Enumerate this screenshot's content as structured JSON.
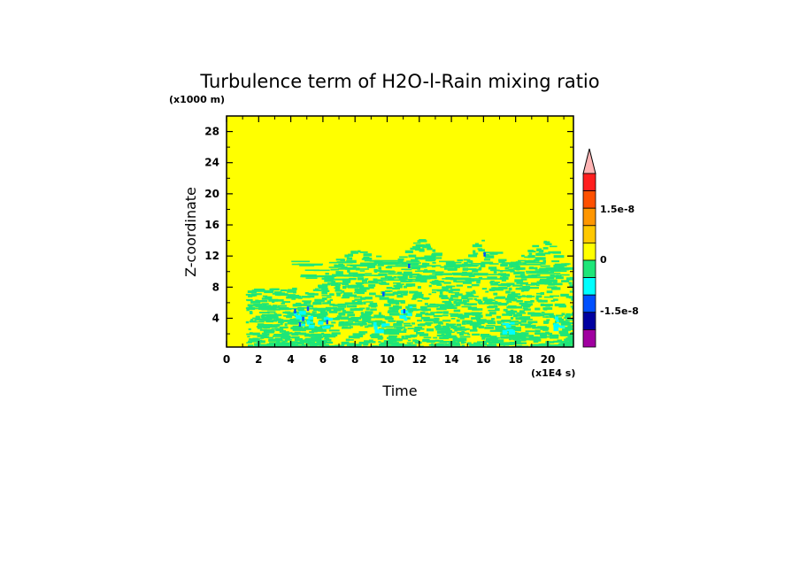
{
  "chart_data": {
    "type": "heatmap",
    "title": "Turbulence term of H2O-l-Rain mixing ratio",
    "xlabel": "Time",
    "ylabel": "Z-coordinate",
    "x_unit_label": "(x1E4 s)",
    "y_unit_label": "(x1000 m)",
    "xlim": [
      0,
      21.6
    ],
    "ylim": [
      0.3,
      30.0
    ],
    "x_ticks": [
      0,
      2,
      4,
      6,
      8,
      10,
      12,
      14,
      16,
      18,
      20
    ],
    "y_ticks": [
      4,
      8,
      12,
      16,
      20,
      24,
      28
    ],
    "x_tick_labels": [
      "0",
      "2",
      "4",
      "6",
      "8",
      "10",
      "12",
      "14",
      "16",
      "18",
      "20"
    ],
    "y_tick_labels": [
      "4",
      "8",
      "12",
      "16",
      "20",
      "24",
      "28"
    ],
    "background_level_color": "#ffff00",
    "colorbar": {
      "colors_top_to_bottom": [
        "#ffb4b4",
        "#ff1e1e",
        "#ff5000",
        "#ff9600",
        "#ffc800",
        "#ffff00",
        "#1ee678",
        "#00ffff",
        "#0050ff",
        "#0000a0",
        "#a000a0"
      ],
      "tick_labels": [
        "1.5e-8",
        "0",
        "-1.5e-8"
      ],
      "extend": "max"
    },
    "regions": [
      {
        "level": "small-negative",
        "color": "#1ee678",
        "x": [
          1.2,
          21.6
        ],
        "y": [
          0.5,
          14.5
        ],
        "description_level": "green"
      },
      {
        "level": "negative",
        "color": "#00ffff",
        "x": [
          3.8,
          6.5
        ],
        "y": [
          2.5,
          6.0
        ]
      },
      {
        "level": "strong-negative",
        "color": "#0050ff",
        "x": [
          4.0,
          5.2
        ],
        "y": [
          3.5,
          6.0
        ]
      }
    ]
  }
}
